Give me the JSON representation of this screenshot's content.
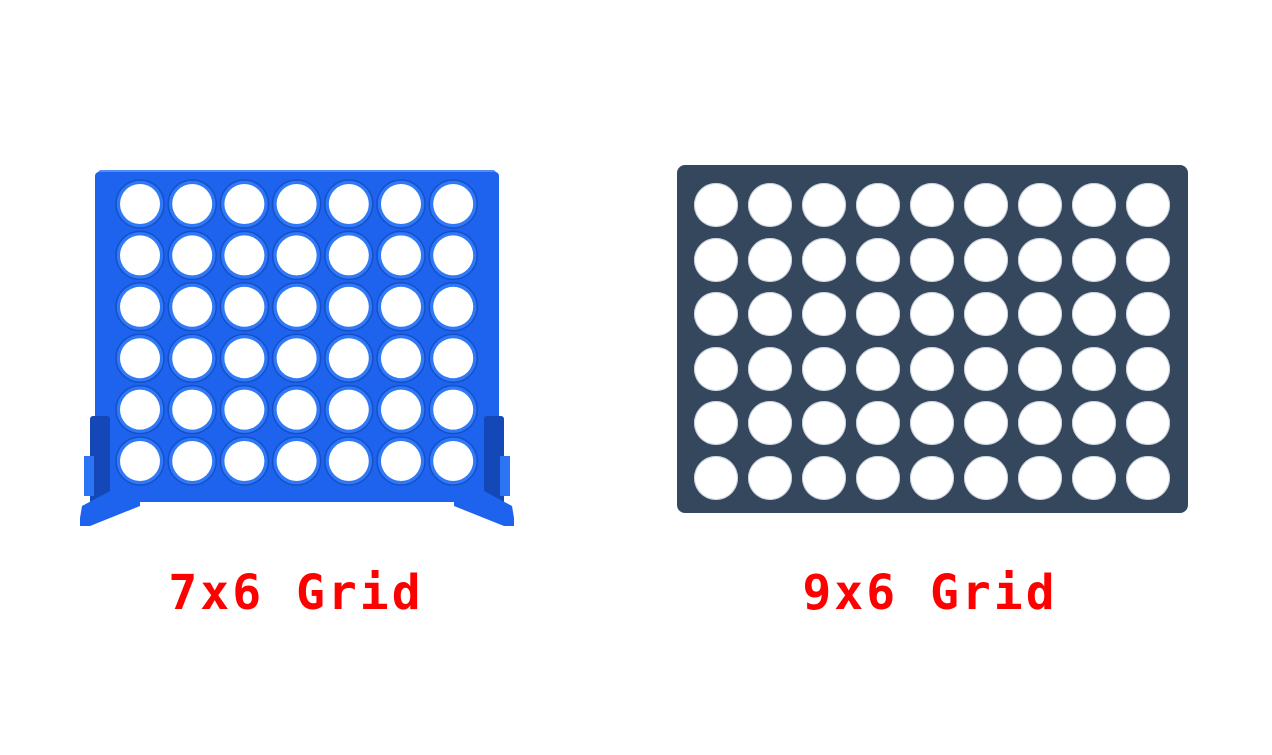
{
  "boards": [
    {
      "id": "classic",
      "columns": 7,
      "rows": 6,
      "frame_color": "#1d63ee",
      "label": "7x6 Grid",
      "label_color": "#ff0000"
    },
    {
      "id": "wide",
      "columns": 9,
      "rows": 6,
      "frame_color": "#35475d",
      "label": "9x6 Grid",
      "label_color": "#ff0000"
    }
  ]
}
